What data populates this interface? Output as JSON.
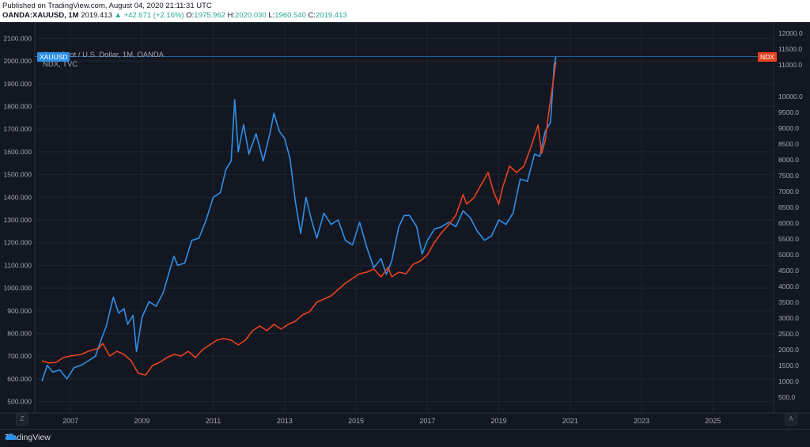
{
  "header": {
    "published": "Published on TradingView.com, August 04, 2020 21:11:31 UTC",
    "symbol": "OANDA:XAUUSD, 1M",
    "price": "2019.413",
    "change": "▲ +42.671 (+2.16%)",
    "o_label": "O:",
    "o_value": "1975.962",
    "h_label": "H:",
    "h_value": "2020.030",
    "l_label": "L:",
    "l_value": "1960.540",
    "c_label": "C:",
    "c_value": "2019.413"
  },
  "legend": {
    "series1": "Gold Spot / U.S. Dollar, 1M, OANDA",
    "series2": "NDX, TVC"
  },
  "tags": {
    "left": "XAUUSD",
    "right": "NDX"
  },
  "footer": {
    "brand": "TradingView"
  },
  "controls": {
    "left_btn": "Z",
    "right_btn": "A"
  },
  "colors": {
    "gold": "#2e8fe8",
    "ndx": "#e8431e",
    "bg": "#131722",
    "grid": "#1f2430",
    "tick": "#a3a6af"
  },
  "chart_data": {
    "type": "line",
    "x_ticks": [
      "2007",
      "2009",
      "2011",
      "2013",
      "2015",
      "2017",
      "2019",
      "2021",
      "2023",
      "2025"
    ],
    "x_range": [
      2006.0,
      2026.7
    ],
    "y_left_ticks": [
      "500.000",
      "600.000",
      "700.000",
      "800.000",
      "900.000",
      "1000.000",
      "1100.000",
      "1200.000",
      "1300.000",
      "1400.000",
      "1500.000",
      "1600.000",
      "1700.000",
      "1800.000",
      "1900.000",
      "2000.000",
      "2100.000"
    ],
    "y_left_range": [
      450,
      2150
    ],
    "y_right_ticks": [
      "500.0",
      "1000.0",
      "1500.0",
      "2000.0",
      "2500.0",
      "3000.0",
      "3500.0",
      "4000.0",
      "4500.0",
      "5000.0",
      "5500.0",
      "6000.0",
      "6500.0",
      "7000.0",
      "7500.0",
      "8000.0",
      "8500.0",
      "9000.0",
      "9500.0",
      "10000.0",
      "11000.0",
      "11500.0",
      "12000.0"
    ],
    "y_right_range": [
      0,
      12200
    ],
    "series": [
      {
        "name": "Gold Spot / U.S. Dollar, 1M, OANDA",
        "axis": "left",
        "points": [
          [
            2006.2,
            590
          ],
          [
            2006.35,
            660
          ],
          [
            2006.5,
            630
          ],
          [
            2006.7,
            640
          ],
          [
            2006.9,
            600
          ],
          [
            2007.1,
            650
          ],
          [
            2007.3,
            660
          ],
          [
            2007.5,
            680
          ],
          [
            2007.7,
            700
          ],
          [
            2007.9,
            790
          ],
          [
            2008.0,
            830
          ],
          [
            2008.2,
            960
          ],
          [
            2008.35,
            890
          ],
          [
            2008.5,
            910
          ],
          [
            2008.6,
            840
          ],
          [
            2008.75,
            880
          ],
          [
            2008.85,
            720
          ],
          [
            2009.0,
            870
          ],
          [
            2009.2,
            940
          ],
          [
            2009.4,
            920
          ],
          [
            2009.6,
            980
          ],
          [
            2009.8,
            1090
          ],
          [
            2009.9,
            1140
          ],
          [
            2010.0,
            1100
          ],
          [
            2010.2,
            1110
          ],
          [
            2010.4,
            1210
          ],
          [
            2010.6,
            1220
          ],
          [
            2010.8,
            1300
          ],
          [
            2011.0,
            1400
          ],
          [
            2011.2,
            1420
          ],
          [
            2011.35,
            1520
          ],
          [
            2011.5,
            1560
          ],
          [
            2011.6,
            1830
          ],
          [
            2011.7,
            1600
          ],
          [
            2011.85,
            1720
          ],
          [
            2012.0,
            1590
          ],
          [
            2012.2,
            1680
          ],
          [
            2012.4,
            1560
          ],
          [
            2012.6,
            1690
          ],
          [
            2012.7,
            1770
          ],
          [
            2012.85,
            1690
          ],
          [
            2013.0,
            1660
          ],
          [
            2013.15,
            1570
          ],
          [
            2013.3,
            1380
          ],
          [
            2013.45,
            1240
          ],
          [
            2013.6,
            1400
          ],
          [
            2013.75,
            1300
          ],
          [
            2013.9,
            1220
          ],
          [
            2014.1,
            1330
          ],
          [
            2014.3,
            1280
          ],
          [
            2014.5,
            1300
          ],
          [
            2014.7,
            1210
          ],
          [
            2014.9,
            1190
          ],
          [
            2015.1,
            1290
          ],
          [
            2015.3,
            1180
          ],
          [
            2015.5,
            1090
          ],
          [
            2015.7,
            1130
          ],
          [
            2015.85,
            1060
          ],
          [
            2016.0,
            1120
          ],
          [
            2016.2,
            1270
          ],
          [
            2016.35,
            1320
          ],
          [
            2016.5,
            1320
          ],
          [
            2016.7,
            1270
          ],
          [
            2016.85,
            1150
          ],
          [
            2017.0,
            1210
          ],
          [
            2017.2,
            1260
          ],
          [
            2017.4,
            1270
          ],
          [
            2017.6,
            1290
          ],
          [
            2017.8,
            1270
          ],
          [
            2018.0,
            1340
          ],
          [
            2018.2,
            1310
          ],
          [
            2018.4,
            1250
          ],
          [
            2018.6,
            1210
          ],
          [
            2018.8,
            1230
          ],
          [
            2019.0,
            1300
          ],
          [
            2019.2,
            1280
          ],
          [
            2019.4,
            1330
          ],
          [
            2019.6,
            1480
          ],
          [
            2019.8,
            1470
          ],
          [
            2020.0,
            1590
          ],
          [
            2020.15,
            1580
          ],
          [
            2020.3,
            1690
          ],
          [
            2020.45,
            1730
          ],
          [
            2020.55,
            1980
          ],
          [
            2020.6,
            2019
          ]
        ]
      },
      {
        "name": "NDX, TVC",
        "axis": "right",
        "points": [
          [
            2006.2,
            1650
          ],
          [
            2006.4,
            1580
          ],
          [
            2006.6,
            1600
          ],
          [
            2006.8,
            1750
          ],
          [
            2007.0,
            1800
          ],
          [
            2007.3,
            1850
          ],
          [
            2007.5,
            1950
          ],
          [
            2007.8,
            2050
          ],
          [
            2007.9,
            2200
          ],
          [
            2008.1,
            1800
          ],
          [
            2008.3,
            1950
          ],
          [
            2008.5,
            1850
          ],
          [
            2008.7,
            1650
          ],
          [
            2008.9,
            1250
          ],
          [
            2009.1,
            1200
          ],
          [
            2009.3,
            1500
          ],
          [
            2009.5,
            1600
          ],
          [
            2009.7,
            1750
          ],
          [
            2009.9,
            1850
          ],
          [
            2010.1,
            1800
          ],
          [
            2010.3,
            1950
          ],
          [
            2010.5,
            1750
          ],
          [
            2010.7,
            2000
          ],
          [
            2010.9,
            2150
          ],
          [
            2011.1,
            2300
          ],
          [
            2011.3,
            2350
          ],
          [
            2011.5,
            2300
          ],
          [
            2011.7,
            2150
          ],
          [
            2011.9,
            2300
          ],
          [
            2012.1,
            2600
          ],
          [
            2012.3,
            2750
          ],
          [
            2012.5,
            2600
          ],
          [
            2012.7,
            2800
          ],
          [
            2012.9,
            2650
          ],
          [
            2013.1,
            2800
          ],
          [
            2013.3,
            2900
          ],
          [
            2013.5,
            3100
          ],
          [
            2013.7,
            3200
          ],
          [
            2013.9,
            3500
          ],
          [
            2014.1,
            3600
          ],
          [
            2014.3,
            3700
          ],
          [
            2014.5,
            3900
          ],
          [
            2014.7,
            4100
          ],
          [
            2014.9,
            4250
          ],
          [
            2015.1,
            4400
          ],
          [
            2015.3,
            4450
          ],
          [
            2015.5,
            4550
          ],
          [
            2015.7,
            4300
          ],
          [
            2015.9,
            4600
          ],
          [
            2016.0,
            4300
          ],
          [
            2016.2,
            4450
          ],
          [
            2016.4,
            4400
          ],
          [
            2016.6,
            4700
          ],
          [
            2016.8,
            4800
          ],
          [
            2017.0,
            5000
          ],
          [
            2017.2,
            5400
          ],
          [
            2017.4,
            5700
          ],
          [
            2017.6,
            5950
          ],
          [
            2017.8,
            6250
          ],
          [
            2018.0,
            6900
          ],
          [
            2018.1,
            6600
          ],
          [
            2018.3,
            6800
          ],
          [
            2018.5,
            7200
          ],
          [
            2018.7,
            7600
          ],
          [
            2018.85,
            7000
          ],
          [
            2019.0,
            6600
          ],
          [
            2019.1,
            7100
          ],
          [
            2019.3,
            7800
          ],
          [
            2019.5,
            7600
          ],
          [
            2019.7,
            7800
          ],
          [
            2019.9,
            8400
          ],
          [
            2020.1,
            9100
          ],
          [
            2020.2,
            8200
          ],
          [
            2020.3,
            8600
          ],
          [
            2020.4,
            9500
          ],
          [
            2020.5,
            10300
          ],
          [
            2020.6,
            11100
          ]
        ]
      }
    ]
  }
}
